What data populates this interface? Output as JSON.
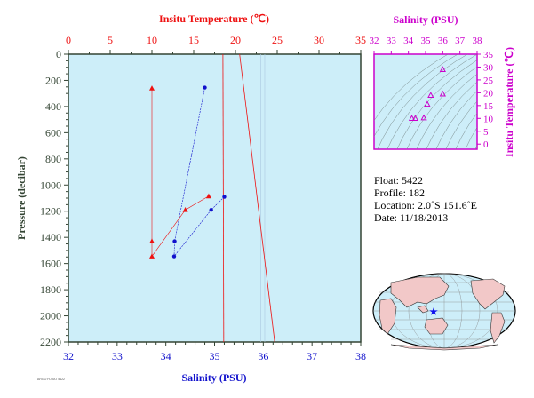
{
  "main_chart": {
    "top_axis_title": "Insitu Temperature (℃)",
    "bottom_axis_title": "Salinity (PSU)",
    "left_axis_title": "Pressure (decibar)",
    "temperature_ticks": [
      "0",
      "5",
      "10",
      "15",
      "20",
      "25",
      "30",
      "35"
    ],
    "salinity_ticks": [
      "32",
      "33",
      "34",
      "35",
      "36",
      "37",
      "38"
    ],
    "pressure_ticks": [
      "0",
      "200",
      "400",
      "600",
      "800",
      "1000",
      "1200",
      "1400",
      "1600",
      "1800",
      "2000",
      "2200"
    ]
  },
  "ts_chart": {
    "top_axis_title": "Salinity (PSU)",
    "right_axis_title": "Insitu Temperature (℃)",
    "salinity_ticks": [
      "32",
      "33",
      "34",
      "35",
      "36",
      "37",
      "38"
    ],
    "temperature_ticks": [
      "0",
      "5",
      "10",
      "15",
      "20",
      "25",
      "30",
      "35"
    ]
  },
  "info": {
    "float": "Float:  5422",
    "profile": "Profile:  182",
    "location": "Location:  2.0˚S  151.6˚E",
    "date": "Date:  11/18/2013"
  },
  "footer_tiny_text": "ARGO FLOAT 5422",
  "colors": {
    "panel_bg": "#cdeef9",
    "temperature": "#ee1111",
    "salinity": "#1111cc",
    "ts_accent": "#cc00cc",
    "axis_green": "#334433",
    "land": "#f2c8c8"
  },
  "chart_data": [
    {
      "type": "line",
      "title": "",
      "x_top_label": "Insitu Temperature (℃)",
      "x_bottom_label": "Salinity (PSU)",
      "ylabel": "Pressure (decibar)",
      "temperature_range": [
        0,
        35
      ],
      "salinity_range": [
        32,
        38
      ],
      "pressure_range": [
        2200,
        0
      ],
      "series": [
        {
          "name": "Insitu Temperature",
          "marker": "triangle",
          "points": [
            {
              "t": 10.0,
              "p": 260
            },
            {
              "t": 10.0,
              "p": 1430
            },
            {
              "t": 10.0,
              "p": 1545
            },
            {
              "t": 14.0,
              "p": 1190
            },
            {
              "t": 16.8,
              "p": 1085
            }
          ]
        },
        {
          "name": "Salinity",
          "marker": "circle",
          "points": [
            {
              "s": 34.8,
              "p": 255
            },
            {
              "s": 34.18,
              "p": 1430
            },
            {
              "s": 34.17,
              "p": 1545
            },
            {
              "s": 34.93,
              "p": 1190
            },
            {
              "s": 35.2,
              "p": 1090
            }
          ]
        }
      ],
      "extra_lines": [
        {
          "t": 18.5,
          "p": 0
        },
        {
          "t": 18.6,
          "p": 2200
        },
        {
          "t": 20.5,
          "p": 0
        },
        {
          "t": 24.7,
          "p": 2200
        }
      ],
      "grid": false
    },
    {
      "type": "scatter",
      "title": "",
      "xlabel": "Salinity (PSU)",
      "ylabel": "Insitu Temperature (℃)",
      "xlim": [
        32,
        38
      ],
      "ylim": [
        -2,
        35
      ],
      "points": [
        {
          "s": 36.0,
          "t": 29.0
        },
        {
          "s": 35.3,
          "t": 19.0
        },
        {
          "s": 36.0,
          "t": 19.5
        },
        {
          "s": 35.1,
          "t": 15.5
        },
        {
          "s": 34.2,
          "t": 10.0
        },
        {
          "s": 34.4,
          "t": 10.0
        },
        {
          "s": 34.9,
          "t": 10.2
        }
      ],
      "density_contours": true,
      "grid": false
    }
  ]
}
